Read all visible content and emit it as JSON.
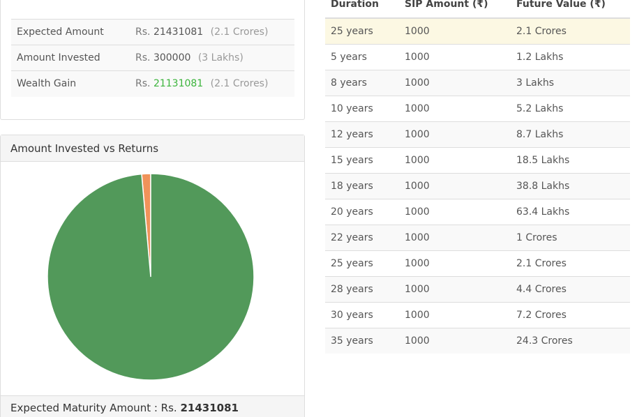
{
  "summary": {
    "rows": [
      {
        "label": "Expected Amount",
        "prefix": "Rs.",
        "amount": "21431081",
        "note": "(2.1 Crores)",
        "highlight": false
      },
      {
        "label": "Amount Invested",
        "prefix": "Rs.",
        "amount": "300000",
        "note": "(3 Lakhs)",
        "highlight": false
      },
      {
        "label": "Wealth Gain",
        "prefix": "Rs.",
        "amount": "21131081",
        "note": "(2.1 Crores)",
        "highlight": true
      }
    ]
  },
  "pie_panel": {
    "title": "Amount Invested vs Returns",
    "footer_label": "Expected Maturity Amount : Rs.",
    "footer_value": "21431081"
  },
  "chart_data": {
    "type": "pie",
    "slices": [
      {
        "label": "Amount Invested",
        "value": 300000,
        "color": "#f0935a"
      },
      {
        "label": "Wealth Gain",
        "value": 21131081,
        "color": "#52995a"
      }
    ]
  },
  "projection_table": {
    "headers": [
      "Duration",
      "SIP Amount (₹)",
      "Future Value (₹)"
    ],
    "rows": [
      [
        "25 years",
        "1000",
        "2.1 Crores"
      ],
      [
        "5 years",
        "1000",
        "1.2 Lakhs"
      ],
      [
        "8 years",
        "1000",
        "3 Lakhs"
      ],
      [
        "10 years",
        "1000",
        "5.2 Lakhs"
      ],
      [
        "12 years",
        "1000",
        "8.7 Lakhs"
      ],
      [
        "15 years",
        "1000",
        "18.5 Lakhs"
      ],
      [
        "18 years",
        "1000",
        "38.8 Lakhs"
      ],
      [
        "20 years",
        "1000",
        "63.4 Lakhs"
      ],
      [
        "22 years",
        "1000",
        "1 Crores"
      ],
      [
        "25 years",
        "1000",
        "2.1 Crores"
      ],
      [
        "28 years",
        "1000",
        "4.4 Crores"
      ],
      [
        "30 years",
        "1000",
        "7.2 Crores"
      ],
      [
        "35 years",
        "1000",
        "24.3 Crores"
      ]
    ]
  },
  "colors": {
    "highlight_row": "#fcf8e3",
    "gain_text": "#3cb43c",
    "invested_slice": "#f0935a",
    "gain_slice": "#52995a"
  }
}
